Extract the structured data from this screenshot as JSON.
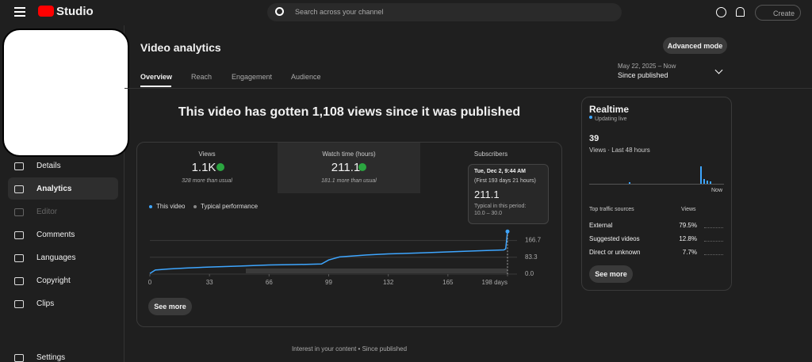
{
  "header": {
    "logo": "Studio",
    "search_placeholder": "Search across your channel",
    "create": "Create"
  },
  "sidebar": {
    "items": [
      "Details",
      "Analytics",
      "Editor",
      "Comments",
      "Languages",
      "Copyright",
      "Clips",
      "Settings"
    ]
  },
  "page": {
    "title": "Video analytics",
    "advanced_button": "Advanced mode",
    "tabs": [
      "Overview",
      "Reach",
      "Engagement",
      "Audience"
    ],
    "date_range": "May 22, 2025 – Now",
    "period": "Since published"
  },
  "headline": "This video has gotten 1,108 views since it was published",
  "metrics": [
    {
      "label": "Views",
      "value": "1.1K",
      "note": "328 more than usual"
    },
    {
      "label": "Watch time (hours)",
      "value": "211.1",
      "note": "181.1 more than usual"
    },
    {
      "label": "Subscribers"
    }
  ],
  "chart": {
    "type": "line",
    "legend": [
      "This video",
      "Typical performance"
    ],
    "x": [
      0,
      3,
      10,
      20,
      33,
      50,
      66,
      80,
      95,
      99,
      105,
      120,
      132,
      150,
      165,
      180,
      196,
      197,
      198
    ],
    "series": [
      {
        "name": "This video",
        "color": "#3ea6ff",
        "values": [
          3,
          20,
          25,
          30,
          35,
          40,
          45,
          47,
          50,
          70,
          85,
          95,
          100,
          105,
          110,
          115,
          120,
          125,
          211.1
        ]
      }
    ],
    "xlim": [
      0,
      198
    ],
    "ylim": [
      0,
      220
    ],
    "xticks": [
      0,
      33,
      66,
      99,
      132,
      165,
      {
        "value": 198,
        "label": "198 days"
      }
    ],
    "yticks": [
      {
        "value": 0,
        "label": "0.0"
      },
      83.3,
      166.7
    ],
    "tooltip": {
      "date": "Tue, Dec 2, 9:44 AM",
      "span": "(First 193 days 21 hours)",
      "value": "211.1",
      "typical_label": "Typical in this period:",
      "typical_range": "10.0 – 30.0"
    },
    "see_more": "See more"
  },
  "footer": "Interest in your content • Since published",
  "realtime": {
    "title": "Realtime",
    "status": "Updating live",
    "count": "39",
    "subtitle": "Views · Last 48 hours",
    "now": "Now",
    "sources_title": "Top traffic sources",
    "views_header": "Views",
    "sources": [
      {
        "name": "External",
        "share": "79.5%"
      },
      {
        "name": "Suggested videos",
        "share": "12.8%"
      },
      {
        "name": "Direct or unknown",
        "share": "7.7%"
      }
    ],
    "see_more": "See more"
  }
}
